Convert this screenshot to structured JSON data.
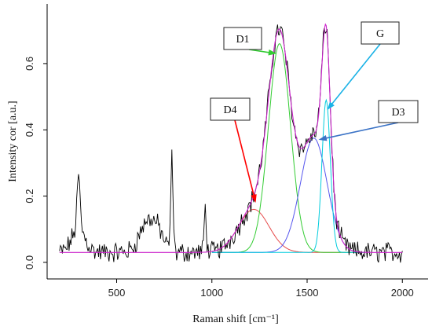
{
  "chart_data": {
    "type": "line",
    "title": "",
    "xlabel": "Raman shift [cm⁻¹]",
    "ylabel": "Intensity cor [a.u.]",
    "xlim": [
      135,
      2135
    ],
    "ylim": [
      -0.05,
      0.78
    ],
    "xticks": [
      "500",
      "1000",
      "1500",
      "2000"
    ],
    "xtick_values": [
      500,
      1000,
      1500,
      2000
    ],
    "yticks": [
      "0.0",
      "0.2",
      "0.4",
      "0.6"
    ],
    "ytick_values": [
      0.0,
      0.2,
      0.4,
      0.6
    ],
    "baseline": 0.03,
    "measured": {
      "x_range": [
        200,
        2000
      ],
      "step": 5,
      "noise_amplitude": 0.025,
      "color": "#000000",
      "sharp_peaks": [
        {
          "center": 300,
          "height": 0.16,
          "width": 8
        },
        {
          "center": 790,
          "height": 0.28,
          "width": 6
        },
        {
          "center": 965,
          "height": 0.13,
          "width": 6
        }
      ],
      "broad_features": [
        {
          "center": 300,
          "height": 0.07,
          "width": 35
        },
        {
          "center": 660,
          "height": 0.09,
          "width": 40
        },
        {
          "center": 720,
          "height": 0.05,
          "width": 30
        }
      ]
    },
    "series": [
      {
        "name": "D4",
        "center": 1220,
        "height": 0.13,
        "width": 80,
        "color": "#e64b4b"
      },
      {
        "name": "D1",
        "center": 1355,
        "height": 0.63,
        "width": 58,
        "color": "#33cc33"
      },
      {
        "name": "D3",
        "center": 1535,
        "height": 0.345,
        "width": 70,
        "color": "#5555ee"
      },
      {
        "name": "G",
        "center": 1600,
        "height": 0.46,
        "width": 22,
        "color": "#00ccdd"
      }
    ],
    "fit_envelope": {
      "color": "#cc22cc"
    },
    "annotations": [
      {
        "label": "D1",
        "target": [
          1340,
          0.63
        ],
        "arrow_color": "#33cc33"
      },
      {
        "label": "G",
        "target": [
          1605,
          0.46
        ],
        "arrow_color": "#1ab2e6"
      },
      {
        "label": "D4",
        "target": [
          1230,
          0.18
        ],
        "arrow_color": "#ff0000"
      },
      {
        "label": "D3",
        "target": [
          1560,
          0.37
        ],
        "arrow_color": "#3b73c6"
      }
    ]
  }
}
